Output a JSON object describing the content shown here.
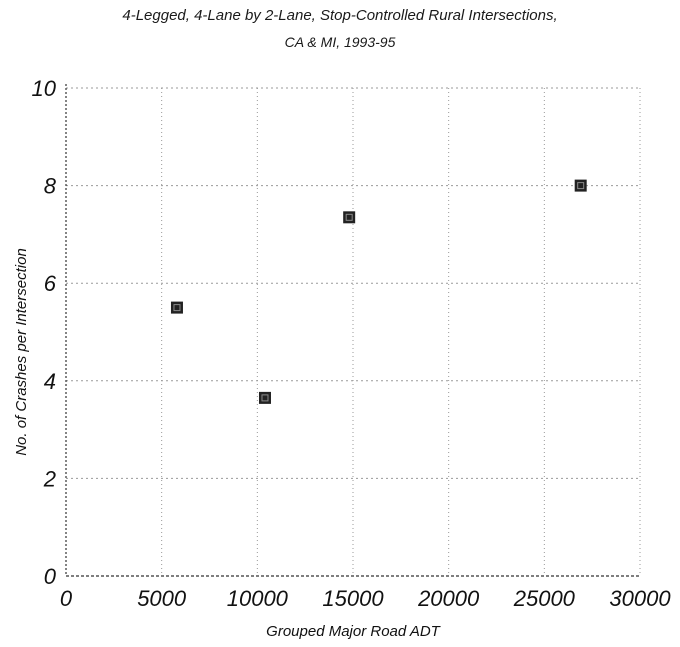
{
  "chart_data": {
    "type": "scatter",
    "title": "4-Legged, 4-Lane by 2-Lane, Stop-Controlled Rural Intersections,",
    "subtitle": "CA & MI, 1993-95",
    "xlabel": "Grouped Major Road ADT",
    "ylabel": "No. of Crashes per Intersection",
    "xlim": [
      0,
      30000
    ],
    "ylim": [
      0,
      10
    ],
    "x_ticks": [
      "0",
      "5000",
      "10000",
      "15000",
      "20000",
      "25000",
      "30000"
    ],
    "y_ticks": [
      "0",
      "2",
      "4",
      "6",
      "8",
      "10"
    ],
    "grid": true,
    "marker": "square",
    "points": [
      {
        "x": 5800,
        "y": 5.5
      },
      {
        "x": 10400,
        "y": 3.65
      },
      {
        "x": 14800,
        "y": 7.35
      },
      {
        "x": 26900,
        "y": 8.0
      }
    ],
    "colors": {
      "marker": "#222222",
      "grid": "#9a9a9a",
      "axis": "#333333"
    }
  }
}
